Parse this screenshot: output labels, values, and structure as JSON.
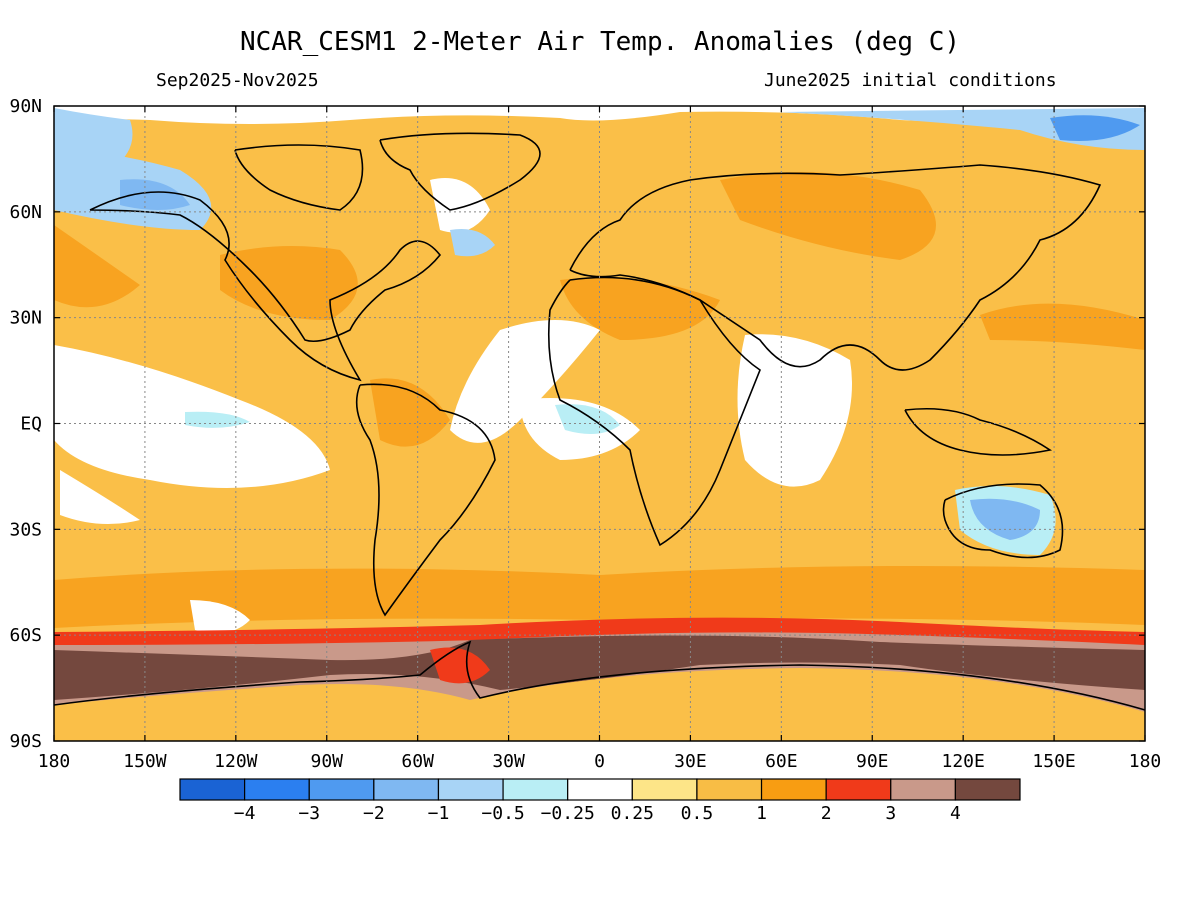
{
  "header": {
    "title": "NCAR_CESM1 2-Meter Air Temp. Anomalies (deg C)",
    "left_subtitle": "Sep2025-Nov2025",
    "right_subtitle": "June2025 initial conditions"
  },
  "map": {
    "lat_labels": [
      "90N",
      "60N",
      "30N",
      "EQ",
      "30S",
      "60S",
      "90S"
    ],
    "lon_labels": [
      "180",
      "150W",
      "120W",
      "90W",
      "60W",
      "30W",
      "0",
      "30E",
      "60E",
      "90E",
      "120E",
      "150E",
      "180"
    ]
  },
  "colorbar": {
    "colors": [
      "#1a63d4",
      "#2b7ff0",
      "#4f9af0",
      "#7fb8f2",
      "#a8d4f6",
      "#b9eef5",
      "#ffffff",
      "#fde588",
      "#f8bd45",
      "#f89d12",
      "#f03a1a",
      "#c9998a",
      "#74483e"
    ],
    "labels": [
      "−4",
      "−3",
      "−2",
      "−1",
      "−0.5",
      "−0.25",
      "0.25",
      "0.5",
      "1",
      "2",
      "3",
      "4"
    ]
  }
}
